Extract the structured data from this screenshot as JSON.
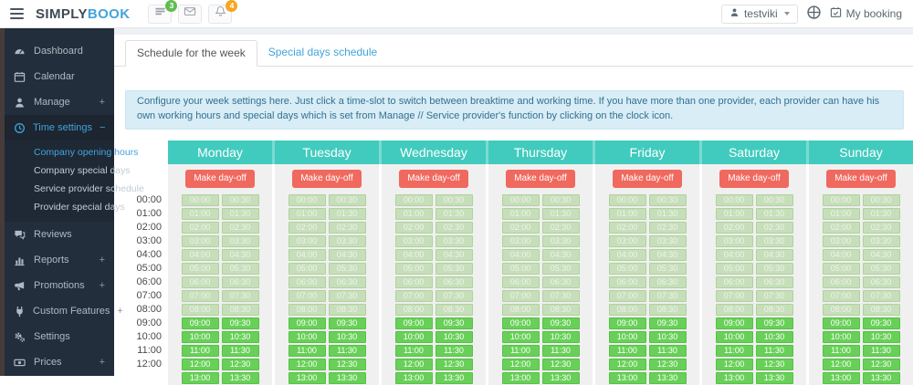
{
  "topbar": {
    "logo_primary": "SIMPLY",
    "logo_secondary": "BOOK",
    "bookings_badge": "3",
    "notifications_badge": "4",
    "user_label": "testviki",
    "my_booking_label": "My booking"
  },
  "sidebar": {
    "items": [
      {
        "icon": "gauge-icon",
        "label": "Dashboard"
      },
      {
        "icon": "calendar-icon",
        "label": "Calendar"
      },
      {
        "icon": "user-icon",
        "label": "Manage",
        "suffix": "+"
      },
      {
        "icon": "clock-icon",
        "label": "Time settings",
        "suffix": "−",
        "active": true,
        "children": [
          "Company opening hours",
          "Company special days",
          "Service provider schedule",
          "Provider special days"
        ],
        "active_child": 0
      },
      {
        "icon": "comments-icon",
        "label": "Reviews"
      },
      {
        "icon": "chart-icon",
        "label": "Reports",
        "suffix": "+"
      },
      {
        "icon": "megaphone-icon",
        "label": "Promotions",
        "suffix": "+"
      },
      {
        "icon": "plug-icon",
        "label": "Custom Features",
        "suffix": "+"
      },
      {
        "icon": "gears-icon",
        "label": "Settings"
      },
      {
        "icon": "money-icon",
        "label": "Prices",
        "suffix": "+"
      }
    ]
  },
  "tabs": [
    {
      "label": "Schedule for the week",
      "active": true
    },
    {
      "label": "Special days schedule",
      "active": false
    }
  ],
  "banner": {
    "text": "Configure your week settings here. Just click a time-slot to switch between breaktime and working time. If you have more than one provider, each provider can have his own working hours and special days which is set from Manage // Service provider's function by clicking on the clock icon."
  },
  "schedule": {
    "days": [
      "Monday",
      "Tuesday",
      "Wednesday",
      "Thursday",
      "Friday",
      "Saturday",
      "Sunday"
    ],
    "make_day_off_label": "Make day-off",
    "hours": [
      "00:00",
      "01:00",
      "02:00",
      "03:00",
      "04:00",
      "05:00",
      "06:00",
      "07:00",
      "08:00",
      "09:00",
      "10:00",
      "11:00",
      "12:00",
      "13:00"
    ],
    "half_hour_suffix": ":30",
    "working_hours_start": "09:00",
    "visible_hour_labels": 13
  },
  "colors": {
    "header_teal": "#41cbbe",
    "day_off_red": "#f0695f",
    "working_green": "#68d058",
    "breaktime_green": "#c7debb",
    "active_link_blue": "#42a4dc",
    "banner_bg": "#d9edf7",
    "banner_text": "#31708f",
    "badge_green": "#62bd4f",
    "badge_orange": "#f5a623",
    "sidebar_bg": "#232e3c"
  }
}
